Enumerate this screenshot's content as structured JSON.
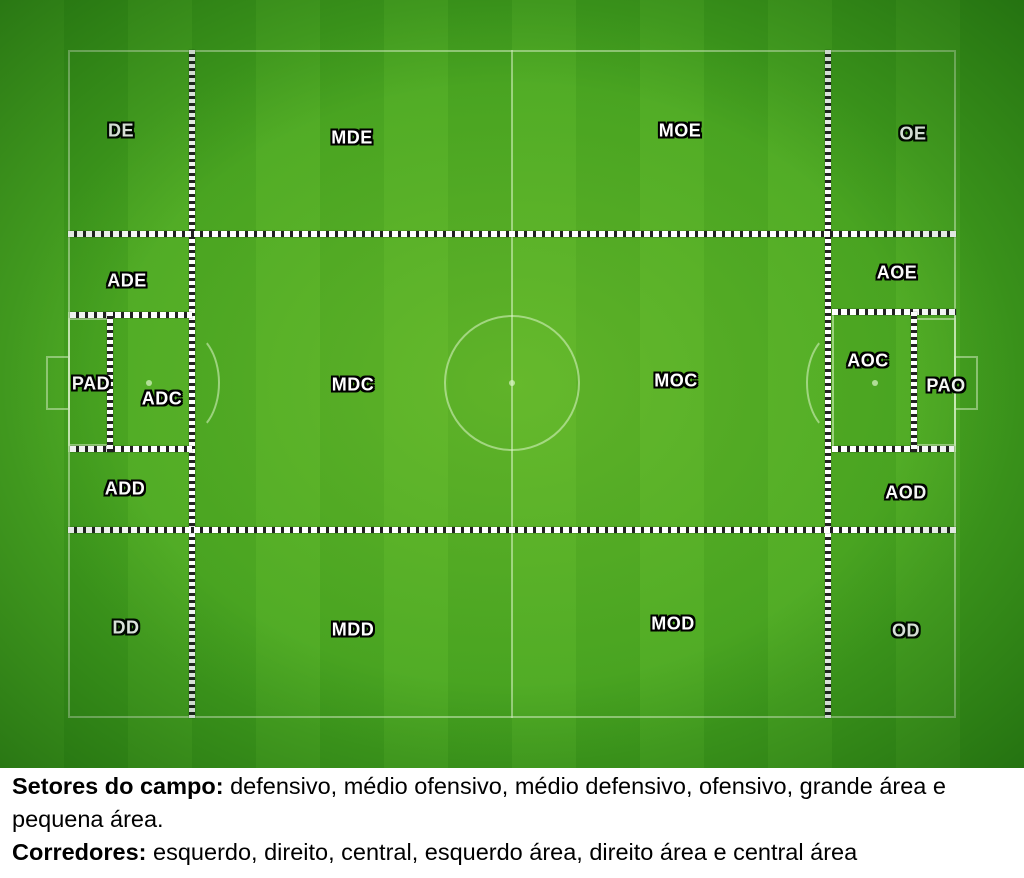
{
  "zones": {
    "DE": "DE",
    "MDE": "MDE",
    "MOE": "MOE",
    "OE": "OE",
    "ADE": "ADE",
    "AOE": "AOE",
    "PAD": "PAD",
    "ADC": "ADC",
    "MDC": "MDC",
    "MOC": "MOC",
    "AOC": "AOC",
    "PAO": "PAO",
    "ADD": "ADD",
    "AOD": "AOD",
    "DD": "DD",
    "MDD": "MDD",
    "MOD": "MOD",
    "OD": "OD"
  },
  "caption": {
    "sectors_title": "Setores do campo:",
    "sectors_text": " defensivo, médio ofensivo, médio defensivo, ofensivo, grande área e pequena área.",
    "corridors_title": "Corredores:",
    "corridors_text": " esquerdo, direito, central, esquerdo área, direito área e central área"
  },
  "colors": {
    "grass_light": "#4ca924",
    "grass_dark": "#43a01f",
    "label_text": "#ffffff",
    "label_outline": "#000000"
  }
}
